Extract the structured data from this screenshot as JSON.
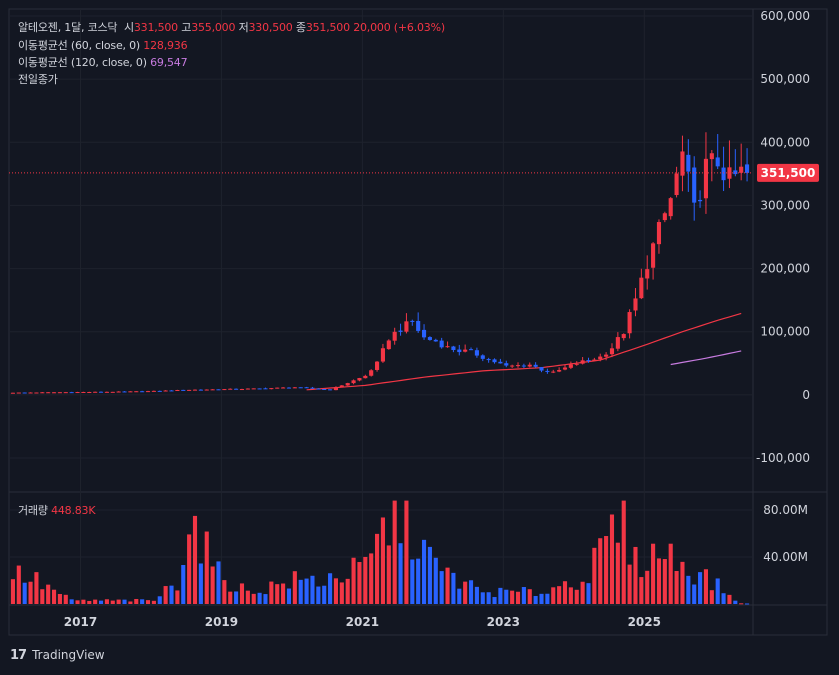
{
  "header": {
    "name": "알테오젠",
    "interval": "1달",
    "market": "코스닥",
    "open_label": "시",
    "open": "331,500",
    "high_label": "고",
    "high": "355,000",
    "low_label": "저",
    "low": "330,500",
    "close_label": "종",
    "close": "351,500",
    "change": "20,000 (+6.03%)"
  },
  "indicators": [
    {
      "label": "이동평균선 (60, close, 0)",
      "value": "128,936",
      "color": "#f23645"
    },
    {
      "label": "이동평균선 (120, close, 0)",
      "value": "69,547",
      "color": "#c77be0"
    }
  ],
  "prev_close_label": "전일종가",
  "volume": {
    "label": "거래량",
    "value": "448.83K"
  },
  "price_axis": {
    "ticks": [
      "600,000",
      "500,000",
      "400,000",
      "300,000",
      "200,000",
      "100,000",
      "0",
      "-100,000"
    ],
    "current_price_label": "351,500"
  },
  "volume_axis": {
    "ticks": [
      "80.00M",
      "40.00M"
    ]
  },
  "time_axis": {
    "ticks": [
      "2017",
      "2019",
      "2021",
      "2023",
      "2025"
    ]
  },
  "brand": "TradingView",
  "colors": {
    "up": "#f23645",
    "down": "#2962ff",
    "background": "#131722",
    "ma60": "#f23645",
    "ma120": "#c77be0"
  },
  "chart_data": {
    "type": "candlestick",
    "interval": "1M",
    "x_start": "2016-01",
    "x_end": "2025-07",
    "ylim": [
      -150000,
      600000
    ],
    "volume_ylim": [
      0,
      90000000
    ],
    "current_price": 351500,
    "series": [
      {
        "name": "price",
        "points": [
          [
            0,
            3500
          ],
          [
            6,
            4000
          ],
          [
            12,
            4500
          ],
          [
            18,
            5000
          ],
          [
            24,
            6000
          ],
          [
            30,
            8000
          ],
          [
            36,
            9000
          ],
          [
            42,
            10000
          ],
          [
            48,
            12000
          ],
          [
            54,
            8000
          ],
          [
            60,
            30000
          ],
          [
            62,
            50000
          ],
          [
            64,
            90000
          ],
          [
            66,
            105000
          ],
          [
            68,
            115000
          ],
          [
            70,
            90000
          ],
          [
            72,
            85000
          ],
          [
            74,
            75000
          ],
          [
            76,
            70000
          ],
          [
            78,
            68000
          ],
          [
            80,
            60000
          ],
          [
            84,
            45000
          ],
          [
            88,
            48000
          ],
          [
            90,
            40000
          ],
          [
            92,
            35000
          ],
          [
            96,
            50000
          ],
          [
            98,
            55000
          ],
          [
            100,
            60000
          ],
          [
            102,
            75000
          ],
          [
            104,
            100000
          ],
          [
            106,
            150000
          ],
          [
            108,
            210000
          ],
          [
            110,
            260000
          ],
          [
            112,
            310000
          ],
          [
            114,
            380000
          ],
          [
            116,
            290000
          ],
          [
            118,
            360000
          ],
          [
            120,
            370000
          ],
          [
            122,
            340000
          ],
          [
            124,
            351500
          ]
        ]
      },
      {
        "name": "MA 60",
        "values": [
          [
            50,
            8000
          ],
          [
            60,
            15000
          ],
          [
            70,
            28000
          ],
          [
            80,
            38000
          ],
          [
            90,
            43000
          ],
          [
            100,
            55000
          ],
          [
            108,
            80000
          ],
          [
            114,
            100000
          ],
          [
            120,
            118000
          ],
          [
            124,
            128936
          ]
        ]
      },
      {
        "name": "MA 120",
        "values": [
          [
            112,
            48000
          ],
          [
            118,
            58000
          ],
          [
            124,
            69547
          ]
        ]
      },
      {
        "name": "volume",
        "values": [
          [
            2,
            25000000
          ],
          [
            10,
            3000000
          ],
          [
            24,
            3000000
          ],
          [
            28,
            20000000
          ],
          [
            30,
            75000000
          ],
          [
            35,
            25000000
          ],
          [
            40,
            10000000
          ],
          [
            48,
            20000000
          ],
          [
            52,
            20000000
          ],
          [
            60,
            30000000
          ],
          [
            64,
            70000000
          ],
          [
            66,
            75000000
          ],
          [
            68,
            65000000
          ],
          [
            72,
            30000000
          ],
          [
            80,
            10000000
          ],
          [
            90,
            10000000
          ],
          [
            98,
            25000000
          ],
          [
            104,
            75000000
          ],
          [
            106,
            35000000
          ],
          [
            110,
            45000000
          ],
          [
            116,
            30000000
          ],
          [
            120,
            15000000
          ],
          [
            124,
            448830
          ]
        ]
      }
    ]
  }
}
